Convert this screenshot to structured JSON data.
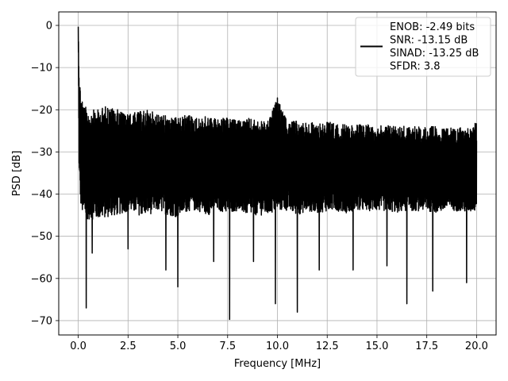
{
  "chart_data": {
    "type": "line",
    "title": "",
    "xlabel": "Frequency [MHz]",
    "ylabel": "PSD [dB]",
    "xlim": [
      -0.98,
      20.98
    ],
    "ylim": [
      -73.4,
      3.2
    ],
    "x_ticks": [
      0.0,
      2.5,
      5.0,
      7.5,
      10.0,
      12.5,
      15.0,
      17.5,
      20.0
    ],
    "x_tick_labels": [
      "0.0",
      "2.5",
      "5.0",
      "7.5",
      "10.0",
      "12.5",
      "15.0",
      "17.5",
      "20.0"
    ],
    "y_ticks": [
      0,
      -10,
      -20,
      -30,
      -40,
      -50,
      -60,
      -70
    ],
    "y_tick_labels": [
      "0",
      "−10",
      "−20",
      "−30",
      "−40",
      "−50",
      "−60",
      "−70"
    ],
    "grid": true,
    "legend_position": "upper right",
    "line_color": "#000000",
    "series": [
      {
        "name": "ENOB: -2.49 bits\nSNR: -13.15 dB\nSINAD: -13.25 dB\nSFDR: 3.8",
        "legend_lines": [
          "ENOB: -2.49 bits",
          "SNR: -13.15 dB",
          "SINAD: -13.25 dB",
          "SFDR: 3.8"
        ],
        "frequency_range_mhz": [
          0,
          20
        ],
        "peak": {
          "x": 0.0,
          "y": -0.3
        },
        "upper_envelope": [
          [
            0.0,
            -0.3
          ],
          [
            0.05,
            -12
          ],
          [
            0.15,
            -16
          ],
          [
            0.3,
            -19
          ],
          [
            0.6,
            -20
          ],
          [
            1.0,
            -20
          ],
          [
            1.4,
            -19
          ],
          [
            2.0,
            -20
          ],
          [
            2.5,
            -21
          ],
          [
            3.0,
            -20.5
          ],
          [
            3.5,
            -20
          ],
          [
            4.0,
            -21
          ],
          [
            4.5,
            -21.5
          ],
          [
            5.0,
            -22
          ],
          [
            5.5,
            -21
          ],
          [
            6.0,
            -22
          ],
          [
            6.5,
            -21.5
          ],
          [
            7.0,
            -22
          ],
          [
            7.5,
            -22
          ],
          [
            8.0,
            -22.5
          ],
          [
            8.5,
            -22
          ],
          [
            9.0,
            -22.5
          ],
          [
            9.5,
            -23
          ],
          [
            10.0,
            -17.2
          ],
          [
            10.5,
            -23
          ],
          [
            11.0,
            -22.5
          ],
          [
            11.5,
            -23
          ],
          [
            12.0,
            -23
          ],
          [
            12.5,
            -22.5
          ],
          [
            13.0,
            -23.5
          ],
          [
            13.5,
            -23.5
          ],
          [
            14.0,
            -23.5
          ],
          [
            14.5,
            -23.5
          ],
          [
            15.0,
            -24
          ],
          [
            15.5,
            -23.5
          ],
          [
            16.0,
            -23.5
          ],
          [
            16.5,
            -24
          ],
          [
            17.0,
            -24
          ],
          [
            17.5,
            -24
          ],
          [
            18.0,
            -24
          ],
          [
            18.5,
            -24.5
          ],
          [
            19.0,
            -24
          ],
          [
            19.5,
            -24.5
          ],
          [
            20.0,
            -23
          ]
        ],
        "lower_envelope": [
          [
            0.0,
            -3
          ],
          [
            0.05,
            -38
          ],
          [
            0.15,
            -44
          ],
          [
            0.3,
            -46
          ],
          [
            0.6,
            -46
          ],
          [
            1.0,
            -46
          ],
          [
            1.5,
            -45.5
          ],
          [
            2.0,
            -45
          ],
          [
            2.5,
            -44
          ],
          [
            3.0,
            -45
          ],
          [
            3.5,
            -45
          ],
          [
            4.0,
            -44
          ],
          [
            4.5,
            -45
          ],
          [
            5.0,
            -45.5
          ],
          [
            5.5,
            -44
          ],
          [
            6.0,
            -44
          ],
          [
            6.5,
            -45
          ],
          [
            7.0,
            -44
          ],
          [
            7.5,
            -44.5
          ],
          [
            8.0,
            -44
          ],
          [
            8.5,
            -45
          ],
          [
            9.0,
            -45
          ],
          [
            9.5,
            -45
          ],
          [
            10.0,
            -44
          ],
          [
            10.5,
            -44
          ],
          [
            11.0,
            -45
          ],
          [
            11.5,
            -44
          ],
          [
            12.0,
            -44.5
          ],
          [
            12.5,
            -44
          ],
          [
            13.0,
            -44
          ],
          [
            13.5,
            -44.5
          ],
          [
            14.0,
            -44
          ],
          [
            14.5,
            -44
          ],
          [
            15.0,
            -44
          ],
          [
            15.5,
            -44
          ],
          [
            16.0,
            -44.5
          ],
          [
            16.5,
            -44
          ],
          [
            17.0,
            -44
          ],
          [
            17.5,
            -44
          ],
          [
            18.0,
            -44.5
          ],
          [
            18.5,
            -44
          ],
          [
            19.0,
            -44
          ],
          [
            19.5,
            -44.5
          ],
          [
            20.0,
            -44
          ]
        ],
        "notable_dips": [
          {
            "x": 0.4,
            "y": -67
          },
          {
            "x": 0.7,
            "y": -54
          },
          {
            "x": 2.5,
            "y": -53
          },
          {
            "x": 4.4,
            "y": -58
          },
          {
            "x": 5.0,
            "y": -62
          },
          {
            "x": 6.8,
            "y": -56
          },
          {
            "x": 7.6,
            "y": -69.7
          },
          {
            "x": 8.8,
            "y": -56
          },
          {
            "x": 9.9,
            "y": -66
          },
          {
            "x": 11.0,
            "y": -68
          },
          {
            "x": 12.1,
            "y": -58
          },
          {
            "x": 13.8,
            "y": -58
          },
          {
            "x": 15.5,
            "y": -57
          },
          {
            "x": 16.5,
            "y": -66
          },
          {
            "x": 17.8,
            "y": -63
          },
          {
            "x": 19.5,
            "y": -61
          }
        ]
      }
    ]
  }
}
